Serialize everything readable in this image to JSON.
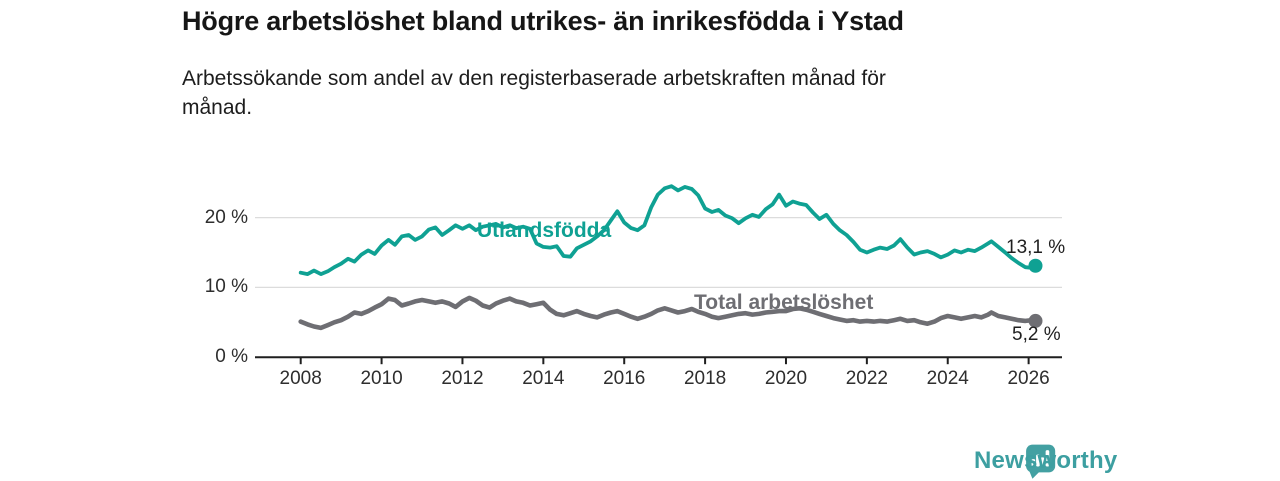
{
  "chart_data": {
    "type": "line",
    "title": "Högre arbetslöshet bland utrikes- än inrikesfödda i Ystad",
    "subtitle": "Arbetssökande som andel av den registerbaserade arbetskraften månad för månad.",
    "unit": "%",
    "grid": "horizontal",
    "legend_position": "inline-labels",
    "x_axis": {
      "ticks": [
        2008,
        2010,
        2012,
        2014,
        2016,
        2018,
        2020,
        2022,
        2024,
        2026
      ],
      "range": [
        2008,
        2026.2
      ]
    },
    "y_axis": {
      "ticks": [
        0,
        10,
        20
      ],
      "tick_labels": [
        "0 %",
        "10 %",
        "20 %"
      ],
      "range": [
        0,
        26
      ]
    },
    "series": [
      {
        "name": "Utlandsfödda",
        "color": "#0fa193",
        "end_value": 13.1,
        "end_label": "13,1 %",
        "points": [
          [
            2008.0,
            12.1
          ],
          [
            2008.17,
            11.9
          ],
          [
            2008.33,
            12.4
          ],
          [
            2008.5,
            11.9
          ],
          [
            2008.67,
            12.3
          ],
          [
            2008.83,
            12.9
          ],
          [
            2009.0,
            13.4
          ],
          [
            2009.17,
            14.1
          ],
          [
            2009.33,
            13.7
          ],
          [
            2009.5,
            14.7
          ],
          [
            2009.67,
            15.3
          ],
          [
            2009.83,
            14.8
          ],
          [
            2010.0,
            16.0
          ],
          [
            2010.17,
            16.8
          ],
          [
            2010.33,
            16.1
          ],
          [
            2010.5,
            17.3
          ],
          [
            2010.67,
            17.5
          ],
          [
            2010.83,
            16.8
          ],
          [
            2011.0,
            17.3
          ],
          [
            2011.17,
            18.3
          ],
          [
            2011.33,
            18.6
          ],
          [
            2011.5,
            17.5
          ],
          [
            2011.67,
            18.2
          ],
          [
            2011.83,
            18.9
          ],
          [
            2012.0,
            18.4
          ],
          [
            2012.17,
            18.9
          ],
          [
            2012.33,
            18.2
          ],
          [
            2012.5,
            18.7
          ],
          [
            2012.67,
            18.9
          ],
          [
            2012.83,
            19.1
          ],
          [
            2013.0,
            18.6
          ],
          [
            2013.17,
            18.9
          ],
          [
            2013.33,
            18.5
          ],
          [
            2013.5,
            18.7
          ],
          [
            2013.67,
            18.4
          ],
          [
            2013.83,
            16.3
          ],
          [
            2014.0,
            15.8
          ],
          [
            2014.17,
            15.7
          ],
          [
            2014.33,
            15.9
          ],
          [
            2014.5,
            14.5
          ],
          [
            2014.67,
            14.4
          ],
          [
            2014.83,
            15.6
          ],
          [
            2015.0,
            16.1
          ],
          [
            2015.17,
            16.6
          ],
          [
            2015.33,
            17.3
          ],
          [
            2015.5,
            18.2
          ],
          [
            2015.67,
            19.6
          ],
          [
            2015.83,
            20.9
          ],
          [
            2016.0,
            19.3
          ],
          [
            2016.17,
            18.5
          ],
          [
            2016.33,
            18.2
          ],
          [
            2016.5,
            18.9
          ],
          [
            2016.67,
            21.5
          ],
          [
            2016.83,
            23.3
          ],
          [
            2017.0,
            24.2
          ],
          [
            2017.17,
            24.5
          ],
          [
            2017.33,
            23.9
          ],
          [
            2017.5,
            24.4
          ],
          [
            2017.67,
            24.1
          ],
          [
            2017.83,
            23.2
          ],
          [
            2018.0,
            21.3
          ],
          [
            2018.17,
            20.8
          ],
          [
            2018.33,
            21.1
          ],
          [
            2018.5,
            20.3
          ],
          [
            2018.67,
            19.9
          ],
          [
            2018.83,
            19.2
          ],
          [
            2019.0,
            19.9
          ],
          [
            2019.17,
            20.4
          ],
          [
            2019.33,
            20.1
          ],
          [
            2019.5,
            21.2
          ],
          [
            2019.67,
            21.9
          ],
          [
            2019.83,
            23.3
          ],
          [
            2020.0,
            21.7
          ],
          [
            2020.17,
            22.3
          ],
          [
            2020.33,
            22.0
          ],
          [
            2020.5,
            21.8
          ],
          [
            2020.67,
            20.7
          ],
          [
            2020.83,
            19.8
          ],
          [
            2021.0,
            20.4
          ],
          [
            2021.17,
            19.1
          ],
          [
            2021.33,
            18.2
          ],
          [
            2021.5,
            17.5
          ],
          [
            2021.67,
            16.5
          ],
          [
            2021.83,
            15.4
          ],
          [
            2022.0,
            15.0
          ],
          [
            2022.17,
            15.4
          ],
          [
            2022.33,
            15.7
          ],
          [
            2022.5,
            15.5
          ],
          [
            2022.67,
            16.0
          ],
          [
            2022.83,
            16.9
          ],
          [
            2023.0,
            15.7
          ],
          [
            2023.17,
            14.7
          ],
          [
            2023.33,
            15.0
          ],
          [
            2023.5,
            15.2
          ],
          [
            2023.67,
            14.8
          ],
          [
            2023.83,
            14.3
          ],
          [
            2024.0,
            14.7
          ],
          [
            2024.17,
            15.3
          ],
          [
            2024.33,
            15.0
          ],
          [
            2024.5,
            15.4
          ],
          [
            2024.67,
            15.2
          ],
          [
            2024.83,
            15.7
          ],
          [
            2025.0,
            16.3
          ],
          [
            2025.08,
            16.6
          ],
          [
            2025.25,
            15.8
          ],
          [
            2025.42,
            15.0
          ],
          [
            2025.58,
            14.2
          ],
          [
            2025.75,
            13.5
          ],
          [
            2025.92,
            12.9
          ],
          [
            2026.08,
            12.8
          ],
          [
            2026.17,
            13.1
          ]
        ]
      },
      {
        "name": "Total arbetslöshet",
        "color": "#6e6e73",
        "end_value": 5.2,
        "end_label": "5,2 %",
        "points": [
          [
            2008.0,
            5.1
          ],
          [
            2008.17,
            4.7
          ],
          [
            2008.33,
            4.4
          ],
          [
            2008.5,
            4.2
          ],
          [
            2008.67,
            4.6
          ],
          [
            2008.83,
            5.0
          ],
          [
            2009.0,
            5.3
          ],
          [
            2009.17,
            5.8
          ],
          [
            2009.33,
            6.4
          ],
          [
            2009.5,
            6.2
          ],
          [
            2009.67,
            6.6
          ],
          [
            2009.83,
            7.1
          ],
          [
            2010.0,
            7.6
          ],
          [
            2010.17,
            8.4
          ],
          [
            2010.33,
            8.2
          ],
          [
            2010.5,
            7.4
          ],
          [
            2010.67,
            7.7
          ],
          [
            2010.83,
            8.0
          ],
          [
            2011.0,
            8.2
          ],
          [
            2011.17,
            8.0
          ],
          [
            2011.33,
            7.8
          ],
          [
            2011.5,
            8.0
          ],
          [
            2011.67,
            7.7
          ],
          [
            2011.83,
            7.2
          ],
          [
            2012.0,
            8.0
          ],
          [
            2012.17,
            8.5
          ],
          [
            2012.33,
            8.1
          ],
          [
            2012.5,
            7.4
          ],
          [
            2012.67,
            7.1
          ],
          [
            2012.83,
            7.7
          ],
          [
            2013.0,
            8.1
          ],
          [
            2013.17,
            8.4
          ],
          [
            2013.33,
            8.0
          ],
          [
            2013.5,
            7.8
          ],
          [
            2013.67,
            7.4
          ],
          [
            2013.83,
            7.6
          ],
          [
            2014.0,
            7.8
          ],
          [
            2014.17,
            6.8
          ],
          [
            2014.33,
            6.2
          ],
          [
            2014.5,
            6.0
          ],
          [
            2014.67,
            6.3
          ],
          [
            2014.83,
            6.6
          ],
          [
            2015.0,
            6.2
          ],
          [
            2015.17,
            5.9
          ],
          [
            2015.33,
            5.7
          ],
          [
            2015.5,
            6.1
          ],
          [
            2015.67,
            6.4
          ],
          [
            2015.83,
            6.6
          ],
          [
            2016.0,
            6.2
          ],
          [
            2016.17,
            5.8
          ],
          [
            2016.33,
            5.5
          ],
          [
            2016.5,
            5.8
          ],
          [
            2016.67,
            6.2
          ],
          [
            2016.83,
            6.7
          ],
          [
            2017.0,
            7.0
          ],
          [
            2017.17,
            6.7
          ],
          [
            2017.33,
            6.4
          ],
          [
            2017.5,
            6.6
          ],
          [
            2017.67,
            6.9
          ],
          [
            2017.83,
            6.5
          ],
          [
            2018.0,
            6.2
          ],
          [
            2018.17,
            5.8
          ],
          [
            2018.33,
            5.6
          ],
          [
            2018.5,
            5.8
          ],
          [
            2018.67,
            6.0
          ],
          [
            2018.83,
            6.2
          ],
          [
            2019.0,
            6.3
          ],
          [
            2019.17,
            6.1
          ],
          [
            2019.33,
            6.2
          ],
          [
            2019.5,
            6.4
          ],
          [
            2019.67,
            6.5
          ],
          [
            2019.83,
            6.6
          ],
          [
            2020.0,
            6.6
          ],
          [
            2020.17,
            6.9
          ],
          [
            2020.33,
            7.0
          ],
          [
            2020.5,
            6.8
          ],
          [
            2020.67,
            6.5
          ],
          [
            2020.83,
            6.2
          ],
          [
            2021.0,
            5.9
          ],
          [
            2021.17,
            5.6
          ],
          [
            2021.33,
            5.4
          ],
          [
            2021.5,
            5.2
          ],
          [
            2021.67,
            5.3
          ],
          [
            2021.83,
            5.1
          ],
          [
            2022.0,
            5.2
          ],
          [
            2022.17,
            5.1
          ],
          [
            2022.33,
            5.2
          ],
          [
            2022.5,
            5.1
          ],
          [
            2022.67,
            5.3
          ],
          [
            2022.83,
            5.5
          ],
          [
            2023.0,
            5.2
          ],
          [
            2023.17,
            5.3
          ],
          [
            2023.33,
            5.0
          ],
          [
            2023.5,
            4.8
          ],
          [
            2023.67,
            5.1
          ],
          [
            2023.83,
            5.6
          ],
          [
            2024.0,
            5.9
          ],
          [
            2024.17,
            5.7
          ],
          [
            2024.33,
            5.5
          ],
          [
            2024.5,
            5.7
          ],
          [
            2024.67,
            5.9
          ],
          [
            2024.83,
            5.7
          ],
          [
            2025.0,
            6.1
          ],
          [
            2025.08,
            6.4
          ],
          [
            2025.25,
            5.9
          ],
          [
            2025.42,
            5.7
          ],
          [
            2025.58,
            5.5
          ],
          [
            2025.75,
            5.3
          ],
          [
            2025.92,
            5.2
          ],
          [
            2026.08,
            5.3
          ],
          [
            2026.17,
            5.2
          ]
        ]
      }
    ]
  },
  "colors": {
    "grid": "#dcdcdc",
    "axis": "#1f1f1f",
    "tick_text": "#2e2e2e",
    "value_text": "#1f1f1f",
    "brand_teal": "#3d9fa1"
  },
  "footer": {
    "brand": "Newsworthy"
  }
}
